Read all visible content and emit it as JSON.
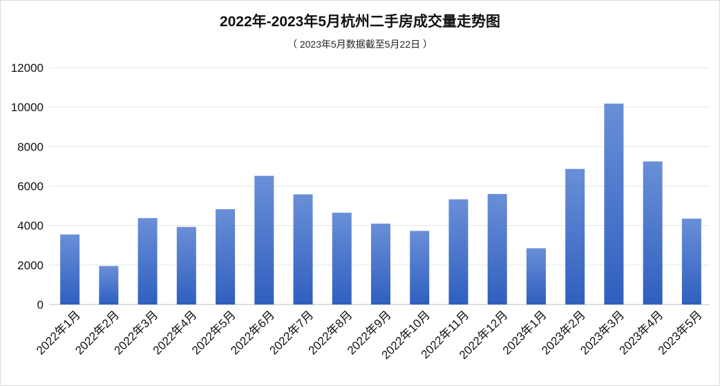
{
  "chart_data": {
    "type": "bar",
    "title": "2022年-2023年5月杭州二手房成交量走势图",
    "subtitle": "（ 2023年5月数据截至5月22日 ）",
    "categories": [
      "2022年1月",
      "2022年2月",
      "2022年3月",
      "2022年4月",
      "2022年5月",
      "2022年6月",
      "2022年7月",
      "2022年8月",
      "2022年9月",
      "2022年10月",
      "2022年11月",
      "2022年12月",
      "2023年1月",
      "2023年2月",
      "2023年3月",
      "2023年4月",
      "2023年5月"
    ],
    "values": [
      3550,
      1950,
      4380,
      3930,
      4830,
      6520,
      5580,
      4650,
      4100,
      3730,
      5330,
      5600,
      2850,
      6870,
      10180,
      7250,
      4350
    ],
    "ylim": [
      0,
      12000
    ],
    "yticks": [
      0,
      2000,
      4000,
      6000,
      8000,
      10000,
      12000
    ],
    "grid": true,
    "bar_color_top": "#6a8fd8",
    "bar_color_bottom": "#2f5fbe"
  }
}
